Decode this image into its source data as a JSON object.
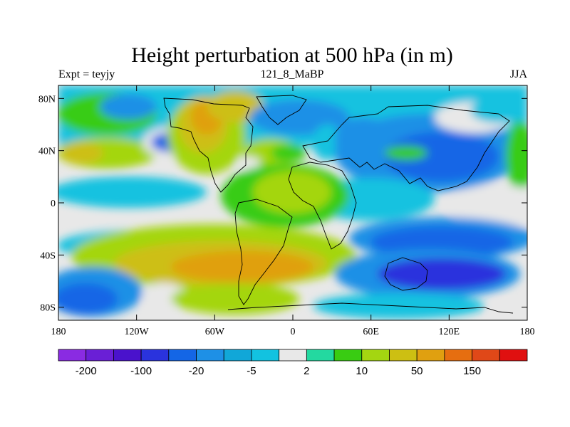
{
  "title": "Height perturbation at 500 hPa (in m)",
  "subtitle_left": "Expt = teyjy",
  "subtitle_center": "121_8_MaBP",
  "subtitle_right": "JJA",
  "map": {
    "lon_range": [
      -180,
      180
    ],
    "lat_range": [
      -90,
      90
    ],
    "x_ticks": [
      {
        "value": -180,
        "label": "180"
      },
      {
        "value": -120,
        "label": "120W"
      },
      {
        "value": -60,
        "label": "60W"
      },
      {
        "value": 0,
        "label": "0"
      },
      {
        "value": 60,
        "label": "60E"
      },
      {
        "value": 120,
        "label": "120E"
      },
      {
        "value": 180,
        "label": "180"
      }
    ],
    "y_ticks": [
      {
        "value": 80,
        "label": "80N"
      },
      {
        "value": 40,
        "label": "40N"
      },
      {
        "value": 0,
        "label": "0"
      },
      {
        "value": -40,
        "label": "40S"
      },
      {
        "value": -80,
        "label": "80S"
      }
    ]
  },
  "colorbar": {
    "colors": [
      "#8a2be2",
      "#6a1fd6",
      "#4a12cc",
      "#2a33dd",
      "#1466e6",
      "#1e90e6",
      "#11a7d8",
      "#12c2e0",
      "#e8e8e8",
      "#23d9a0",
      "#39cc12",
      "#a4d611",
      "#cdbf12",
      "#e0a010",
      "#e66e10",
      "#e04818",
      "#e01010"
    ],
    "labels": [
      {
        "boundary": 1,
        "text": "-200"
      },
      {
        "boundary": 3,
        "text": "-100"
      },
      {
        "boundary": 5,
        "text": "-20"
      },
      {
        "boundary": 7,
        "text": "-5"
      },
      {
        "boundary": 9,
        "text": "2"
      },
      {
        "boundary": 11,
        "text": "10"
      },
      {
        "boundary": 13,
        "text": "50"
      },
      {
        "boundary": 15,
        "text": "150"
      }
    ]
  }
}
